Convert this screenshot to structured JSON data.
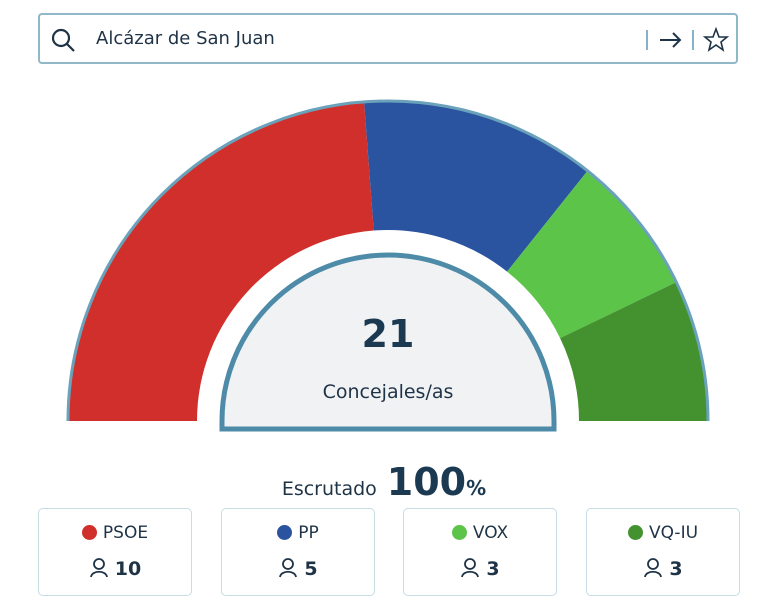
{
  "search": {
    "query": "Alcázar de San Juan"
  },
  "chart_data": {
    "type": "pie",
    "shape": "half-donut",
    "total": 21,
    "center_label": "Concejales/as",
    "categories": [
      "PSOE",
      "PP",
      "VOX",
      "VQ-IU"
    ],
    "values": [
      10,
      5,
      3,
      3
    ],
    "colors": [
      "#d12f2b",
      "#2a54a0",
      "#5dc44a",
      "#43922f"
    ]
  },
  "scrutiny": {
    "label": "Escrutado",
    "value": 100,
    "unit": "%"
  }
}
